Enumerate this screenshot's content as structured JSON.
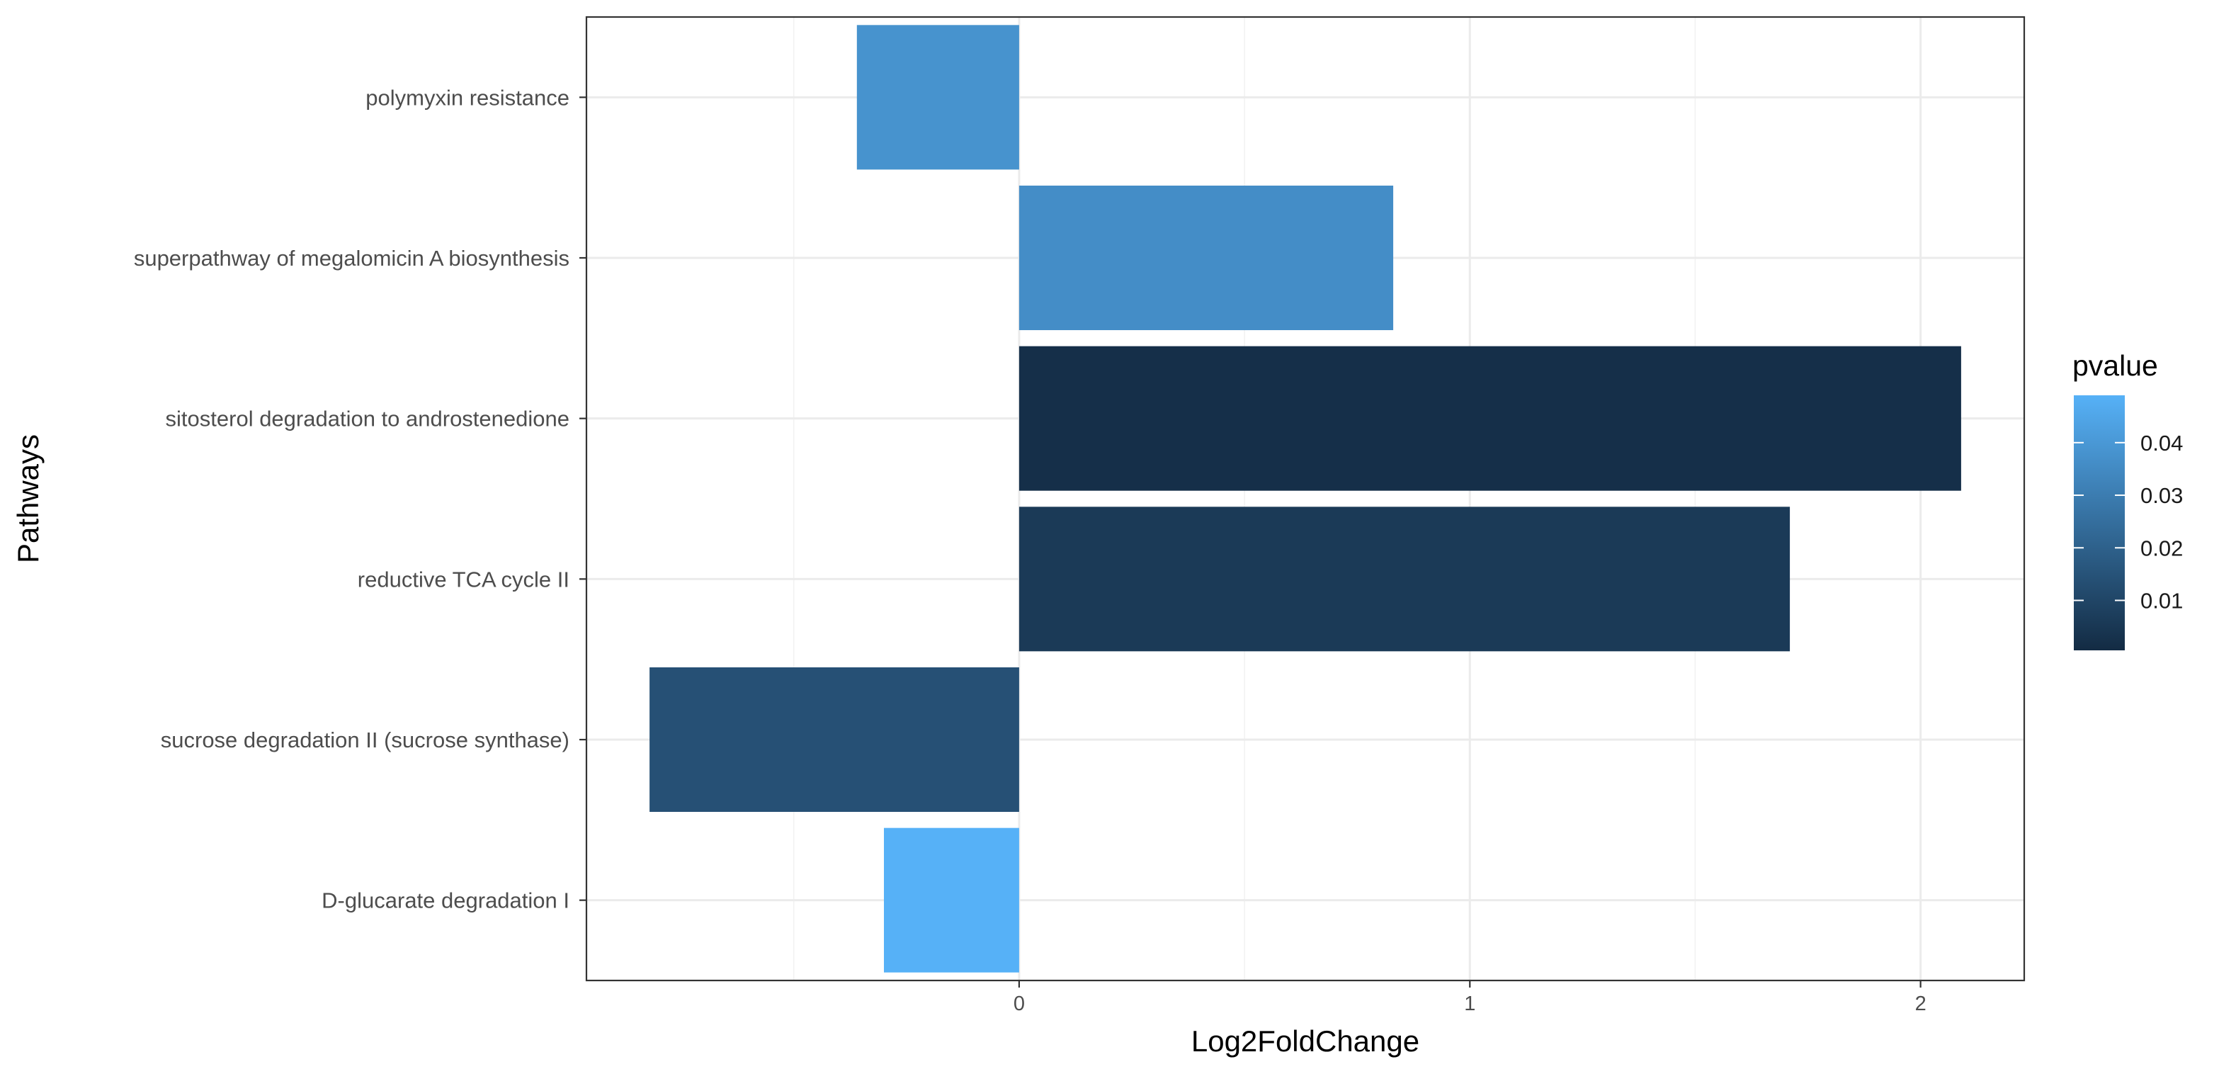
{
  "chart_data": {
    "type": "bar",
    "orientation": "horizontal",
    "xlabel": "Log2FoldChange",
    "ylabel": "Pathways",
    "xlim": [
      -0.96,
      2.23
    ],
    "x_ticks": [
      0,
      1,
      2
    ],
    "x_minor_ticks": [
      -0.5,
      0.5,
      1.5
    ],
    "grid": true,
    "categories": [
      "polymyxin resistance",
      "superpathway of megalomicin A biosynthesis",
      "sitosterol degradation to androstenedione",
      "reductive TCA cycle II",
      "sucrose degradation II (sucrose synthase)",
      "D-glucarate degradation I"
    ],
    "values": [
      -0.36,
      0.83,
      2.09,
      1.71,
      -0.82,
      -0.3
    ],
    "pvalues": [
      0.038,
      0.036,
      0.002,
      0.006,
      0.014,
      0.049
    ],
    "color_scale": {
      "title": "pvalue",
      "ticks": [
        0.04,
        0.03,
        0.02,
        0.01
      ],
      "range": [
        0.0005,
        0.049
      ],
      "low_color": "#132B43",
      "high_color": "#56B1F7",
      "legend_position": "right"
    }
  }
}
